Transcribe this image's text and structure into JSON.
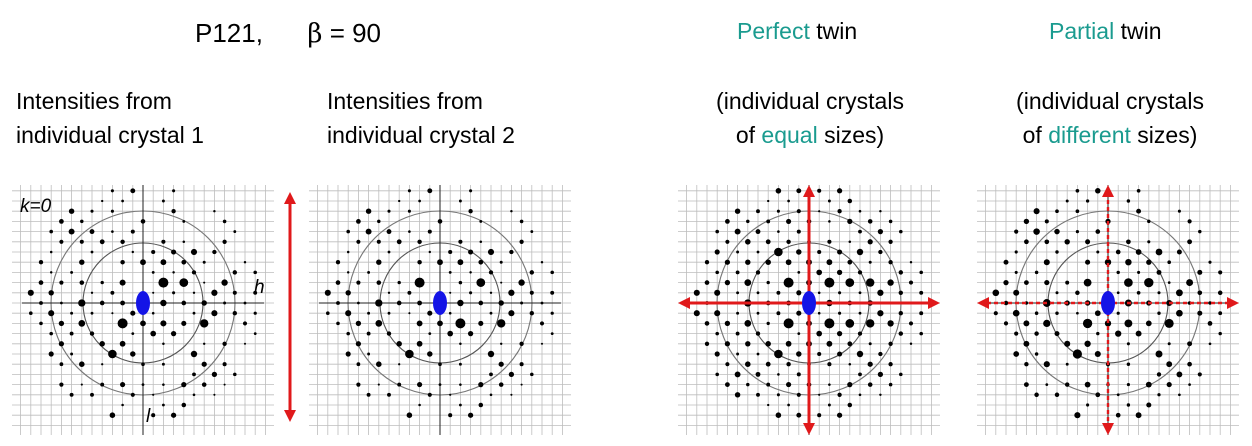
{
  "header": {
    "space_group": "P121,",
    "beta_symbol": "β",
    "beta_value": "= 90"
  },
  "columns": {
    "crystal1": {
      "line1": "Intensities from",
      "line2": "individual crystal 1"
    },
    "crystal2": {
      "line1": "Intensities from",
      "line2": "individual crystal 2"
    },
    "perfect": {
      "title_highlight": "Perfect",
      "title_rest": " twin",
      "line1": "(individual crystals",
      "line2_pre": "of ",
      "line2_highlight": "equal",
      "line2_post": " sizes)"
    },
    "partial": {
      "title_highlight": "Partial",
      "title_rest": " twin",
      "line1": "(individual crystals",
      "line2_pre": "of ",
      "line2_highlight": "different",
      "line2_post": " sizes)"
    }
  },
  "axis_labels": {
    "section": "k=0",
    "h": "h",
    "l": "l"
  },
  "colors": {
    "accent": "#1a9b8f",
    "arrow": "#e0191b",
    "origin": "#1414e6"
  }
}
